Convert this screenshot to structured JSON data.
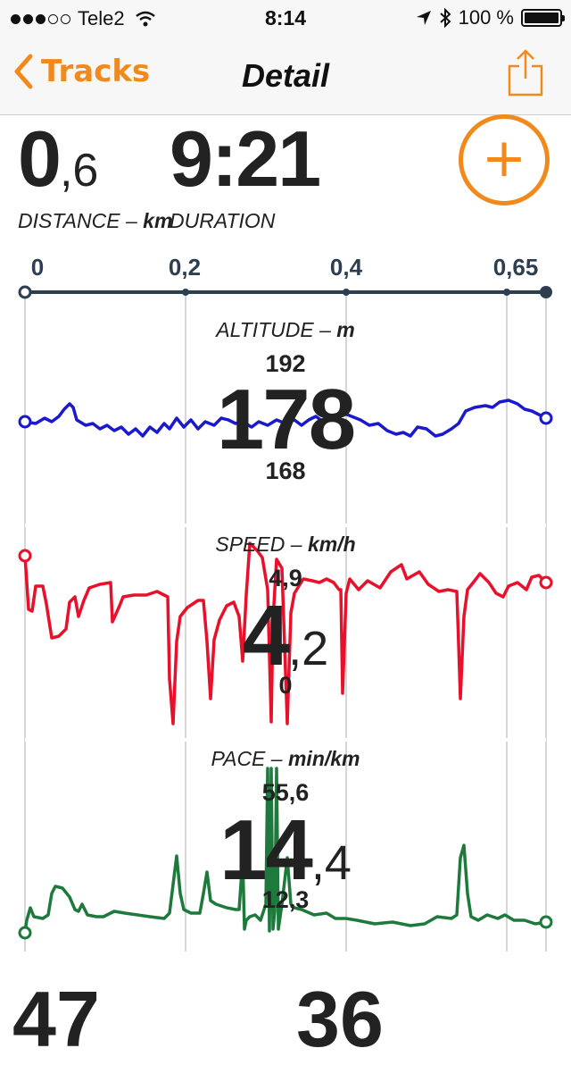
{
  "status": {
    "carrier": "Tele2",
    "time": "8:14",
    "battery": "100 %"
  },
  "nav": {
    "back_label": "Tracks",
    "title": "Detail"
  },
  "distance": {
    "int": "0",
    "dec": ",6",
    "label": "DISTANCE",
    "unit": "km"
  },
  "duration": {
    "value": "9:21",
    "label": "DURATION"
  },
  "axis": {
    "ticks": [
      "0",
      "0,2",
      "0,4",
      "0,65"
    ]
  },
  "altitude": {
    "title": "ALTITUDE",
    "unit": "m",
    "max": "192",
    "current": "178",
    "min": "168",
    "color": "#1a1acc"
  },
  "speed": {
    "title": "SPEED",
    "unit": "km/h",
    "max": "4,9",
    "current_int": "4",
    "current_dec": ",2",
    "min": "0",
    "color": "#e8102a"
  },
  "pace": {
    "title": "PACE",
    "unit": "min/km",
    "max": "55,6",
    "current_int": "14",
    "current_dec": ",4",
    "min": "12,3",
    "color": "#1e7a3c"
  },
  "bottom": {
    "left": "47",
    "right": "36"
  },
  "colors": {
    "accent": "#f28a1b",
    "axis": "#2c3e50"
  }
}
